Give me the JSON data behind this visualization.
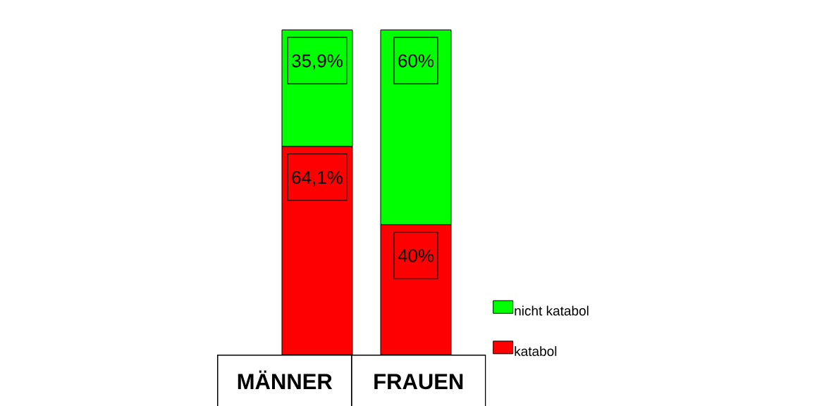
{
  "chart_data": {
    "type": "bar",
    "stacked": true,
    "categories": [
      "MÄNNER",
      "FRAUEN"
    ],
    "series": [
      {
        "name": "katabol",
        "color": "#ff0000",
        "values": [
          64.1,
          40
        ],
        "value_labels": [
          "64,1%",
          "40%"
        ]
      },
      {
        "name": "nicht katabol",
        "color": "#00ff00",
        "values": [
          35.9,
          60
        ],
        "value_labels": [
          "35,9%",
          "60%"
        ]
      }
    ],
    "legend": "bottom right"
  }
}
